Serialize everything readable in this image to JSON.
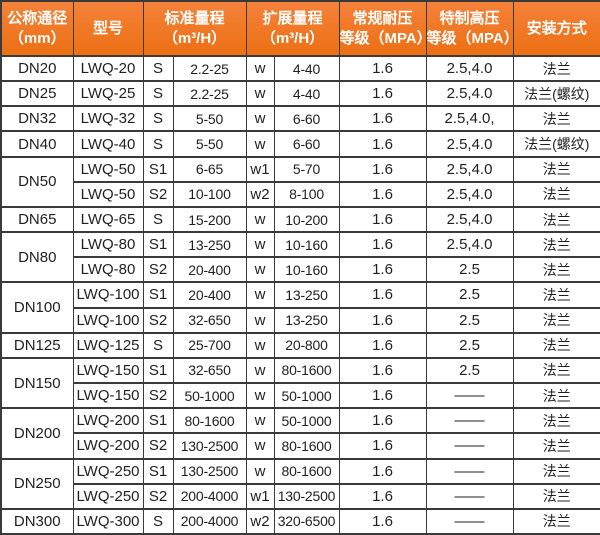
{
  "colors": {
    "header_bg_top": "#f5823a",
    "header_bg_bottom": "#ec6f13",
    "header_text": "#ffffff",
    "grid_line": "#3a3a3a",
    "body_text": "#1f1f1f"
  },
  "table": {
    "header": [
      {
        "line1": "公称通径",
        "line2": "（mm）",
        "colspan": 1
      },
      {
        "line1": "型号",
        "line2": "",
        "colspan": 1
      },
      {
        "line1": "标准量程",
        "line2": "（m³/H）",
        "colspan": 2
      },
      {
        "line1": "扩展量程",
        "line2": "（m³/H）",
        "colspan": 2
      },
      {
        "line1": "常规耐压",
        "line2": "等级（MPA）",
        "colspan": 1
      },
      {
        "line1": "特制高压",
        "line2": "等级（MPA）",
        "colspan": 1
      },
      {
        "line1": "安装方式",
        "line2": "",
        "colspan": 1
      }
    ],
    "rows": [
      {
        "dn": "DN20",
        "span": 1,
        "model": "LWQ-20",
        "s_code": "S",
        "std_range": "2.2-25",
        "w_code": "w",
        "ext_range": "4-40",
        "normal_mpa": "1.6",
        "special_mpa": "2.5,4.0",
        "install": "法兰"
      },
      {
        "dn": "DN25",
        "span": 1,
        "model": "LWQ-25",
        "s_code": "S",
        "std_range": "2.2-25",
        "w_code": "w",
        "ext_range": "4-40",
        "normal_mpa": "1.6",
        "special_mpa": "2.5,4.0",
        "install": "法兰(螺纹)"
      },
      {
        "dn": "DN32",
        "span": 1,
        "model": "LWQ-32",
        "s_code": "S",
        "std_range": "5-50",
        "w_code": "w",
        "ext_range": "6-60",
        "normal_mpa": "1.6",
        "special_mpa": "2.5,4.0,",
        "install": "法兰"
      },
      {
        "dn": "DN40",
        "span": 1,
        "model": "LWQ-40",
        "s_code": "S",
        "std_range": "5-50",
        "w_code": "w",
        "ext_range": "6-60",
        "normal_mpa": "1.6",
        "special_mpa": "2.5,4.0",
        "install": "法兰(螺纹)"
      },
      {
        "dn": "DN50",
        "span": 2,
        "model": "LWQ-50",
        "s_code": "S1",
        "std_range": "6-65",
        "w_code": "w1",
        "ext_range": "5-70",
        "normal_mpa": "1.6",
        "special_mpa": "2.5,4.0",
        "install": "法兰"
      },
      {
        "dn": null,
        "model": "LWQ-50",
        "s_code": "S2",
        "std_range": "10-100",
        "w_code": "w2",
        "ext_range": "8-100",
        "normal_mpa": "1.6",
        "special_mpa": "2.5,4.0",
        "install": "法兰"
      },
      {
        "dn": "DN65",
        "span": 1,
        "model": "LWQ-65",
        "s_code": "S",
        "std_range": "15-200",
        "w_code": "w",
        "ext_range": "10-200",
        "normal_mpa": "1.6",
        "special_mpa": "2.5,4.0",
        "install": "法兰"
      },
      {
        "dn": "DN80",
        "span": 2,
        "model": "LWQ-80",
        "s_code": "S1",
        "std_range": "13-250",
        "w_code": "w",
        "ext_range": "10-160",
        "normal_mpa": "1.6",
        "special_mpa": "2.5,4.0",
        "install": "法兰"
      },
      {
        "dn": null,
        "model": "LWQ-80",
        "s_code": "S2",
        "std_range": "20-400",
        "w_code": "w",
        "ext_range": "10-160",
        "normal_mpa": "1.6",
        "special_mpa": "2.5",
        "install": "法兰"
      },
      {
        "dn": "DN100",
        "span": 2,
        "model": "LWQ-100",
        "s_code": "S1",
        "std_range": "20-400",
        "w_code": "w",
        "ext_range": "13-250",
        "normal_mpa": "1.6",
        "special_mpa": "2.5",
        "install": "法兰"
      },
      {
        "dn": null,
        "model": "LWQ-100",
        "s_code": "S2",
        "std_range": "32-650",
        "w_code": "w",
        "ext_range": "13-250",
        "normal_mpa": "1.6",
        "special_mpa": "2.5",
        "install": "法兰"
      },
      {
        "dn": "DN125",
        "span": 1,
        "model": "LWQ-125",
        "s_code": "S",
        "std_range": "25-700",
        "w_code": "w",
        "ext_range": "20-800",
        "normal_mpa": "1.6",
        "special_mpa": "2.5",
        "install": "法兰"
      },
      {
        "dn": "DN150",
        "span": 2,
        "model": "LWQ-150",
        "s_code": "S1",
        "std_range": "32-650",
        "w_code": "w",
        "ext_range": "80-1600",
        "normal_mpa": "1.6",
        "special_mpa": "2.5",
        "install": "法兰"
      },
      {
        "dn": null,
        "model": "LWQ-150",
        "s_code": "S2",
        "std_range": "50-1000",
        "w_code": "w",
        "ext_range": "50-1000",
        "normal_mpa": "1.6",
        "special_mpa": "——",
        "install": "法兰"
      },
      {
        "dn": "DN200",
        "span": 2,
        "model": "LWQ-200",
        "s_code": "S1",
        "std_range": "80-1600",
        "w_code": "w",
        "ext_range": "50-1000",
        "normal_mpa": "1.6",
        "special_mpa": "——",
        "install": "法兰"
      },
      {
        "dn": null,
        "model": "LWQ-200",
        "s_code": "S2",
        "std_range": "130-2500",
        "w_code": "w",
        "ext_range": "80-1600",
        "normal_mpa": "1.6",
        "special_mpa": "——",
        "install": "法兰"
      },
      {
        "dn": "DN250",
        "span": 2,
        "model": "LWQ-250",
        "s_code": "S1",
        "std_range": "130-2500",
        "w_code": "w",
        "ext_range": "80-1600",
        "normal_mpa": "1.6",
        "special_mpa": "——",
        "install": "法兰"
      },
      {
        "dn": null,
        "model": "LWQ-250",
        "s_code": "S2",
        "std_range": "200-4000",
        "w_code": "w1",
        "ext_range": "130-2500",
        "normal_mpa": "1.6",
        "special_mpa": "——",
        "install": "法兰"
      },
      {
        "dn": "DN300",
        "span": 1,
        "model": "LWQ-300",
        "s_code": "S",
        "std_range": "200-4000",
        "w_code": "w2",
        "ext_range": "320-6500",
        "normal_mpa": "1.6",
        "special_mpa": "——",
        "install": "法兰"
      }
    ]
  }
}
